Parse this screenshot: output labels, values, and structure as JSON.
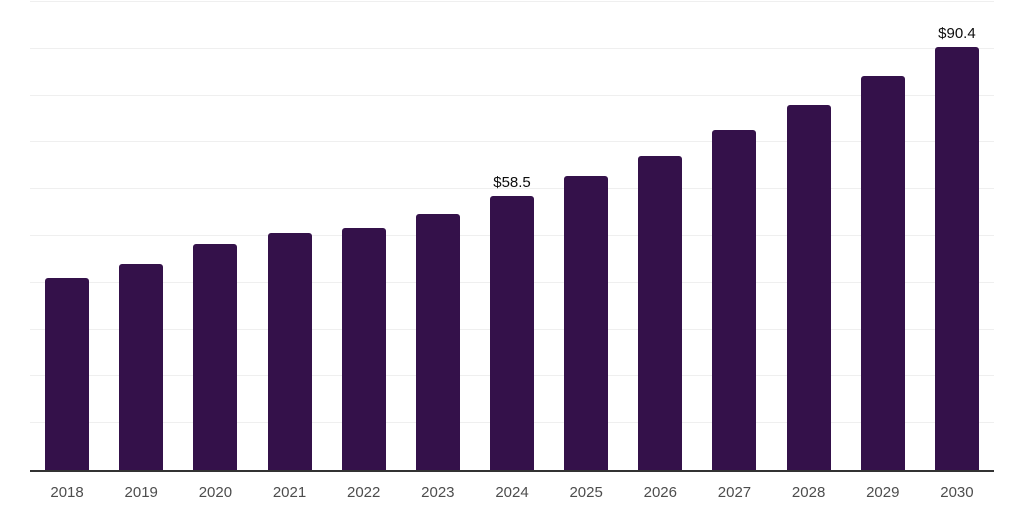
{
  "chart_data": {
    "type": "bar",
    "categories": [
      "2018",
      "2019",
      "2020",
      "2021",
      "2022",
      "2023",
      "2024",
      "2025",
      "2026",
      "2027",
      "2028",
      "2029",
      "2030"
    ],
    "values": [
      41.1,
      44.0,
      48.3,
      50.6,
      51.8,
      54.6,
      58.5,
      62.9,
      67.2,
      72.6,
      78.1,
      84.1,
      90.4
    ],
    "value_labels": [
      "",
      "",
      "",
      "",
      "",
      "",
      "$58.5",
      "",
      "",
      "",
      "",
      "",
      "$90.4"
    ],
    "title": "",
    "xlabel": "",
    "ylabel": "",
    "ylim": [
      0,
      100
    ],
    "gridline_step": 10,
    "grid": "horizontal",
    "legend_position": "none",
    "bar_color": "#34114a",
    "axis_color": "#333333",
    "gridline_color": "#efefef",
    "value_label_color": "#0d0d0d",
    "tick_label_color": "#4d4d4d"
  }
}
